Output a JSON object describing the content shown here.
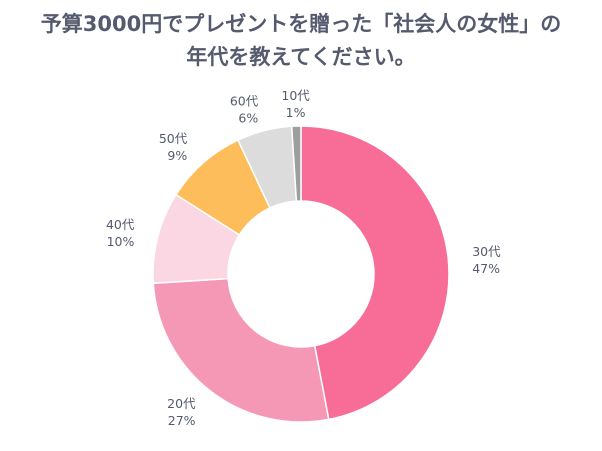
{
  "chart_data": {
    "type": "pie",
    "title_lines": [
      "予算3000円でプレゼントを贈った「社会人の女性」の",
      "年代を教えてください。"
    ],
    "slices": [
      {
        "label": "30代",
        "value": 47,
        "value_label": "47%",
        "color": "#f76d98"
      },
      {
        "label": "20代",
        "value": 27,
        "value_label": "27%",
        "color": "#f598b5"
      },
      {
        "label": "40代",
        "value": 10,
        "value_label": "10%",
        "color": "#fbd7e4"
      },
      {
        "label": "50代",
        "value": 9,
        "value_label": "9%",
        "color": "#fdbd5a"
      },
      {
        "label": "60代",
        "value": 6,
        "value_label": "6%",
        "color": "#dcdcdc"
      },
      {
        "label": "10代",
        "value": 1,
        "value_label": "1%",
        "color": "#9e9e9e"
      }
    ],
    "start": "12 o'clock",
    "direction": "clockwise",
    "style": "donut"
  }
}
